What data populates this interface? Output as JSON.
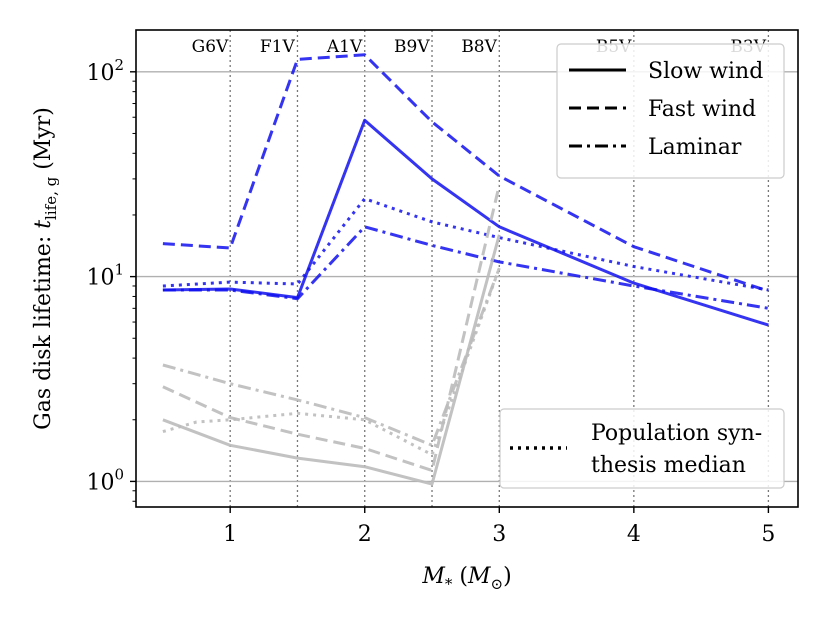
{
  "chart_data": {
    "type": "line",
    "xlabel": "M_* (M_⊙)",
    "ylabel": "Gas disk lifetime: t_life,g (Myr)",
    "xlim": [
      0.3,
      5.22
    ],
    "ylim": [
      0.75,
      160
    ],
    "yscale": "log",
    "x_ticks": [
      1,
      2,
      3,
      4,
      5
    ],
    "x_tick_labels": [
      "1",
      "2",
      "3",
      "4",
      "5"
    ],
    "y_ticks": [
      1,
      10,
      100
    ],
    "y_tick_labels": [
      {
        "base": "10",
        "exp": "0"
      },
      {
        "base": "10",
        "exp": "1"
      },
      {
        "base": "10",
        "exp": "2"
      }
    ],
    "grid": "horizontal at decades",
    "spectral_types": [
      {
        "label": "G6V",
        "x": 0.85
      },
      {
        "label": "F1V",
        "x": 1.35
      },
      {
        "label": "A1V",
        "x": 1.85
      },
      {
        "label": "B9V",
        "x": 2.35
      },
      {
        "label": "B8V",
        "x": 2.85
      },
      {
        "label": "B5V",
        "x": 3.85
      },
      {
        "label": "B3V",
        "x": 4.85
      }
    ],
    "spectral_guides_x": [
      1,
      1.5,
      2,
      2.5,
      3,
      4,
      5
    ],
    "legend_styles": {
      "position": "top-right",
      "entries": [
        {
          "label": "Slow wind",
          "style": "solid"
        },
        {
          "label": "Fast wind",
          "style": "dashed"
        },
        {
          "label": "Laminar",
          "style": "dashdot"
        }
      ]
    },
    "legend_median": {
      "position": "bottom-right",
      "label_line1": "Population syn-",
      "label_line2": "thesis median",
      "style": "dotted"
    },
    "colors": {
      "blue": "#1111ee",
      "grey": "#bbbbbb",
      "grid": "#b0b0b0"
    },
    "series": [
      {
        "color": "blue",
        "style": "solid",
        "x": [
          0.5,
          1.0,
          1.5,
          2.0,
          2.5,
          3.0,
          4.0,
          5.0
        ],
        "y": [
          8.6,
          8.7,
          7.9,
          58,
          30,
          17.5,
          9.3,
          5.8
        ]
      },
      {
        "color": "blue",
        "style": "dashed",
        "x": [
          0.5,
          1.0,
          1.5,
          2.0,
          2.5,
          3.0,
          4.0,
          5.0
        ],
        "y": [
          14.5,
          13.8,
          115,
          121,
          57,
          31,
          14,
          8.5
        ]
      },
      {
        "color": "blue",
        "style": "dashdot",
        "x": [
          0.5,
          1.0,
          1.5,
          2.0,
          2.5,
          3.0,
          4.0,
          5.0
        ],
        "y": [
          8.6,
          8.6,
          7.8,
          17.5,
          14.2,
          11.8,
          9.0,
          7.0
        ]
      },
      {
        "color": "blue",
        "style": "dotted",
        "x": [
          0.5,
          1.0,
          1.5,
          2.0,
          2.5,
          3.0,
          4.0,
          5.0
        ],
        "y": [
          9.0,
          9.4,
          9.2,
          24,
          18.5,
          15.5,
          11.2,
          8.6
        ]
      },
      {
        "color": "grey",
        "style": "solid",
        "x": [
          0.5,
          1.0,
          1.5,
          2.0,
          2.5,
          3.0
        ],
        "y": [
          2.0,
          1.5,
          1.3,
          1.18,
          0.97,
          16
        ]
      },
      {
        "color": "grey",
        "style": "dashed",
        "x": [
          0.5,
          1.0,
          1.5,
          2.0,
          2.5,
          3.0
        ],
        "y": [
          2.9,
          2.05,
          1.7,
          1.45,
          1.13,
          28
        ]
      },
      {
        "color": "grey",
        "style": "dashdot",
        "x": [
          0.5,
          1.0,
          1.5,
          2.0,
          2.5,
          3.0
        ],
        "y": [
          3.7,
          3.0,
          2.5,
          2.05,
          1.5,
          11
        ]
      },
      {
        "color": "grey",
        "style": "dotted",
        "x": [
          0.5,
          0.75,
          1.0,
          1.5,
          2.0,
          2.5,
          3.0
        ],
        "y": [
          1.75,
          1.95,
          2.0,
          2.15,
          2.0,
          1.35,
          11
        ]
      }
    ]
  }
}
